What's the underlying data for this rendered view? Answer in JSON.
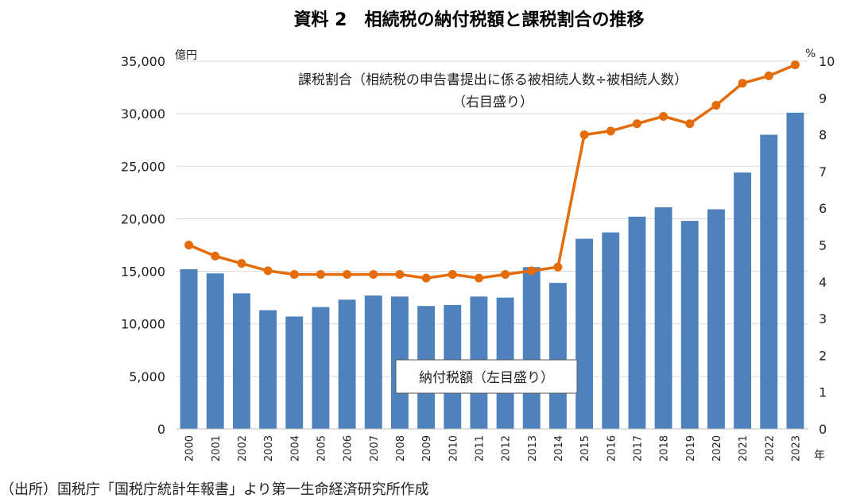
{
  "title": "資料 2　相続税の納付税額と課税割合の推移",
  "source": "（出所）国税庁「国税庁統計年報書」より第一生命経済研究所作成",
  "chart_data": {
    "type": "bar",
    "categories": [
      "2000",
      "2001",
      "2002",
      "2003",
      "2004",
      "2005",
      "2006",
      "2007",
      "2008",
      "2009",
      "2010",
      "2011",
      "2012",
      "2013",
      "2014",
      "2015",
      "2016",
      "2017",
      "2018",
      "2019",
      "2020",
      "2021",
      "2022",
      "2023"
    ],
    "series": [
      {
        "name": "納付税額（左目盛り）",
        "type": "bar",
        "axis": "left",
        "color": "#4f81bd",
        "values": [
          15200,
          14800,
          12900,
          11300,
          10700,
          11600,
          12300,
          12700,
          12600,
          11700,
          11800,
          12600,
          12500,
          15400,
          13900,
          18100,
          18700,
          20200,
          21100,
          19800,
          20900,
          24400,
          28000,
          30100
        ]
      },
      {
        "name": "課税割合（相続税の申告書提出に係る被相続人数÷被相続人数）",
        "name_line2": "（右目盛り）",
        "type": "line",
        "axis": "right",
        "color": "#e46c0a",
        "values": [
          5.0,
          4.7,
          4.5,
          4.3,
          4.2,
          4.2,
          4.2,
          4.2,
          4.2,
          4.1,
          4.2,
          4.1,
          4.2,
          4.3,
          4.4,
          8.0,
          8.1,
          8.3,
          8.5,
          8.3,
          8.8,
          9.4,
          9.6,
          9.9
        ]
      }
    ],
    "left_axis": {
      "unit": "億円",
      "ylim": [
        0,
        35000
      ],
      "ticks": [
        0,
        5000,
        10000,
        15000,
        20000,
        25000,
        30000,
        35000
      ],
      "tick_labels": [
        "0",
        "5,000",
        "10,000",
        "15,000",
        "20,000",
        "25,000",
        "30,000",
        "35,000"
      ]
    },
    "right_axis": {
      "unit": "%",
      "ylim": [
        0,
        10
      ],
      "ticks": [
        0,
        1,
        2,
        3,
        4,
        5,
        6,
        7,
        8,
        9,
        10
      ],
      "tick_labels": [
        "0",
        "1",
        "2",
        "3",
        "4",
        "5",
        "6",
        "7",
        "8",
        "9",
        "10"
      ]
    },
    "x_unit": "年",
    "grid": true
  }
}
